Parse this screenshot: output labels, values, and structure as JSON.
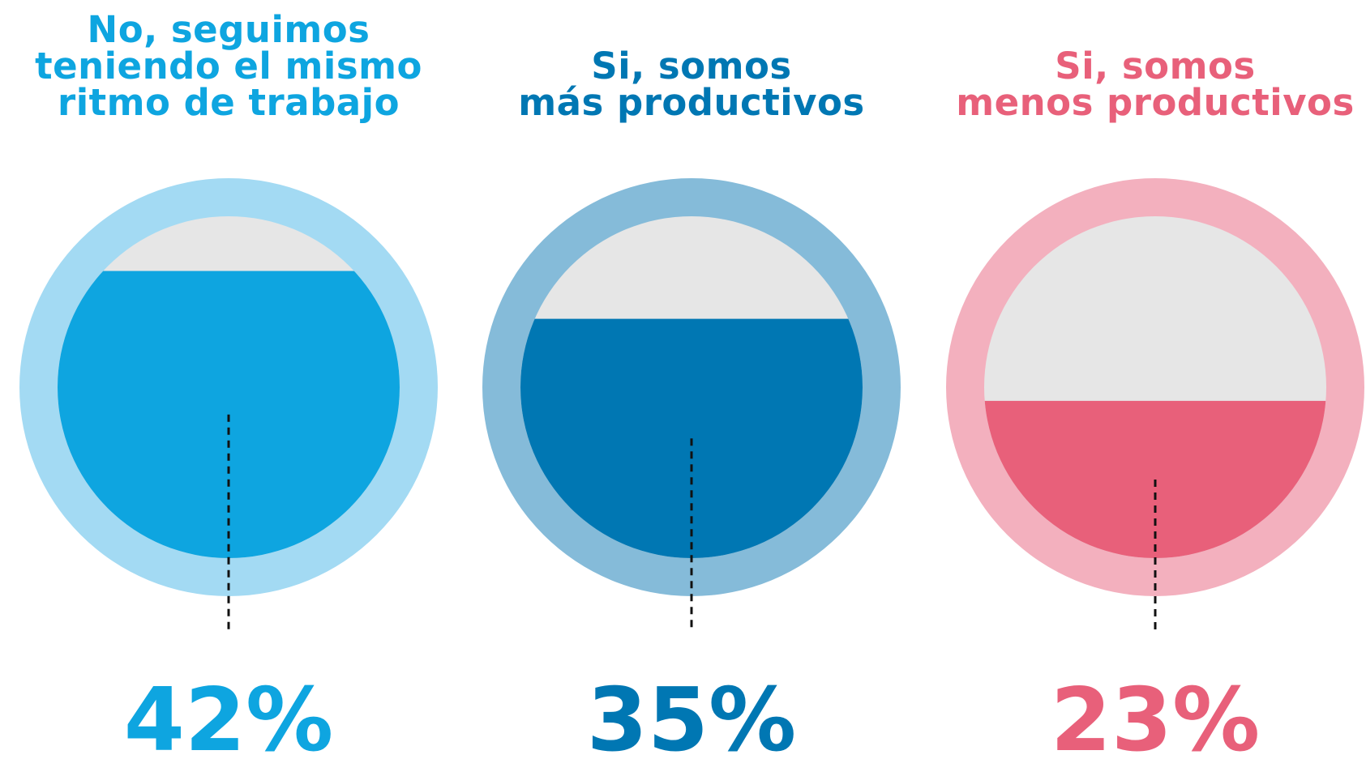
{
  "chart_data": {
    "type": "fill",
    "categories": [
      "No, seguimos\nteniendo el mismo\nritmo de trabajo",
      "Si, somos\nmás productivos",
      "Si, somos\nmenos productivos"
    ],
    "values": [
      42,
      35,
      23
    ],
    "value_labels": [
      "42%",
      "35%",
      "23%"
    ],
    "colors": [
      "#0ea5e0",
      "#0077b3",
      "#e8607a"
    ],
    "ring_colors": [
      "#a3daf3",
      "#85bbd9",
      "#f3b0be"
    ],
    "empty_color": "#e6e6e6",
    "ylim": [
      0,
      50
    ]
  }
}
